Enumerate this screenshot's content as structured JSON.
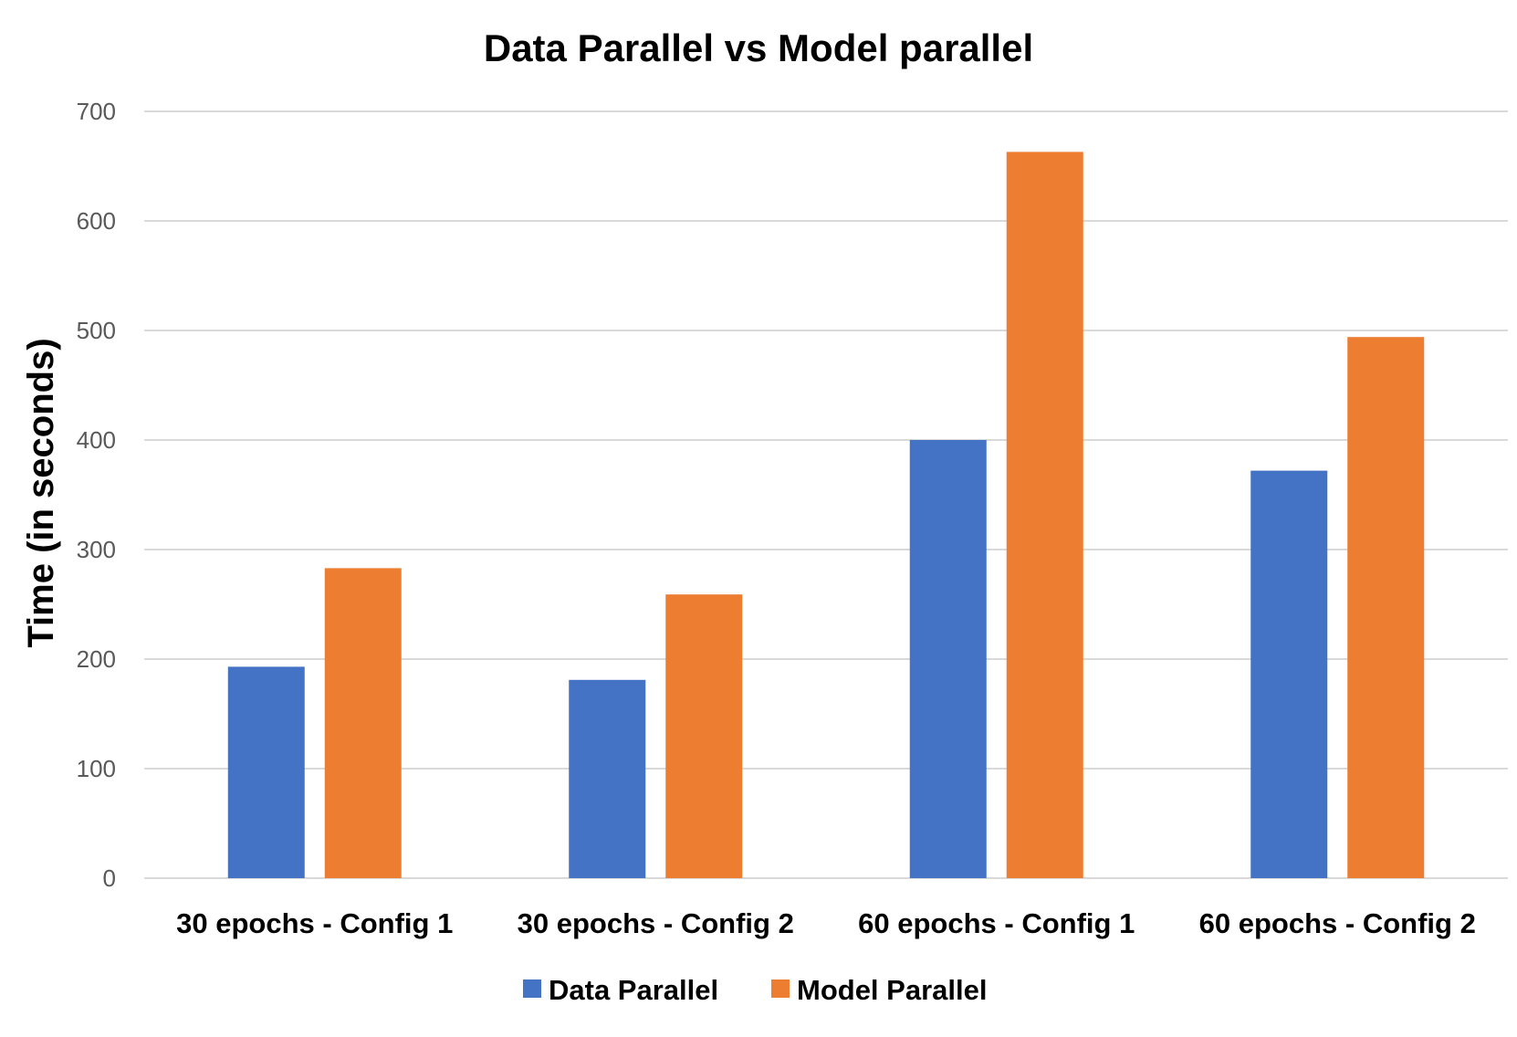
{
  "chart_data": {
    "type": "bar",
    "title": "Data Parallel vs Model parallel",
    "xlabel": "",
    "ylabel": "Time (in seconds)",
    "categories": [
      "30 epochs - Config 1",
      "30 epochs - Config 2",
      "60 epochs - Config 1",
      "60 epochs - Config 2"
    ],
    "series": [
      {
        "name": "Data Parallel",
        "color": "#4472C4",
        "values": [
          193,
          181,
          400,
          372
        ]
      },
      {
        "name": "Model Parallel",
        "color": "#ED7D31",
        "values": [
          283,
          259,
          663,
          494
        ]
      }
    ],
    "ylim": [
      0,
      700
    ],
    "yticks": [
      0,
      100,
      200,
      300,
      400,
      500,
      600,
      700
    ],
    "grid": true,
    "legend_position": "bottom"
  }
}
